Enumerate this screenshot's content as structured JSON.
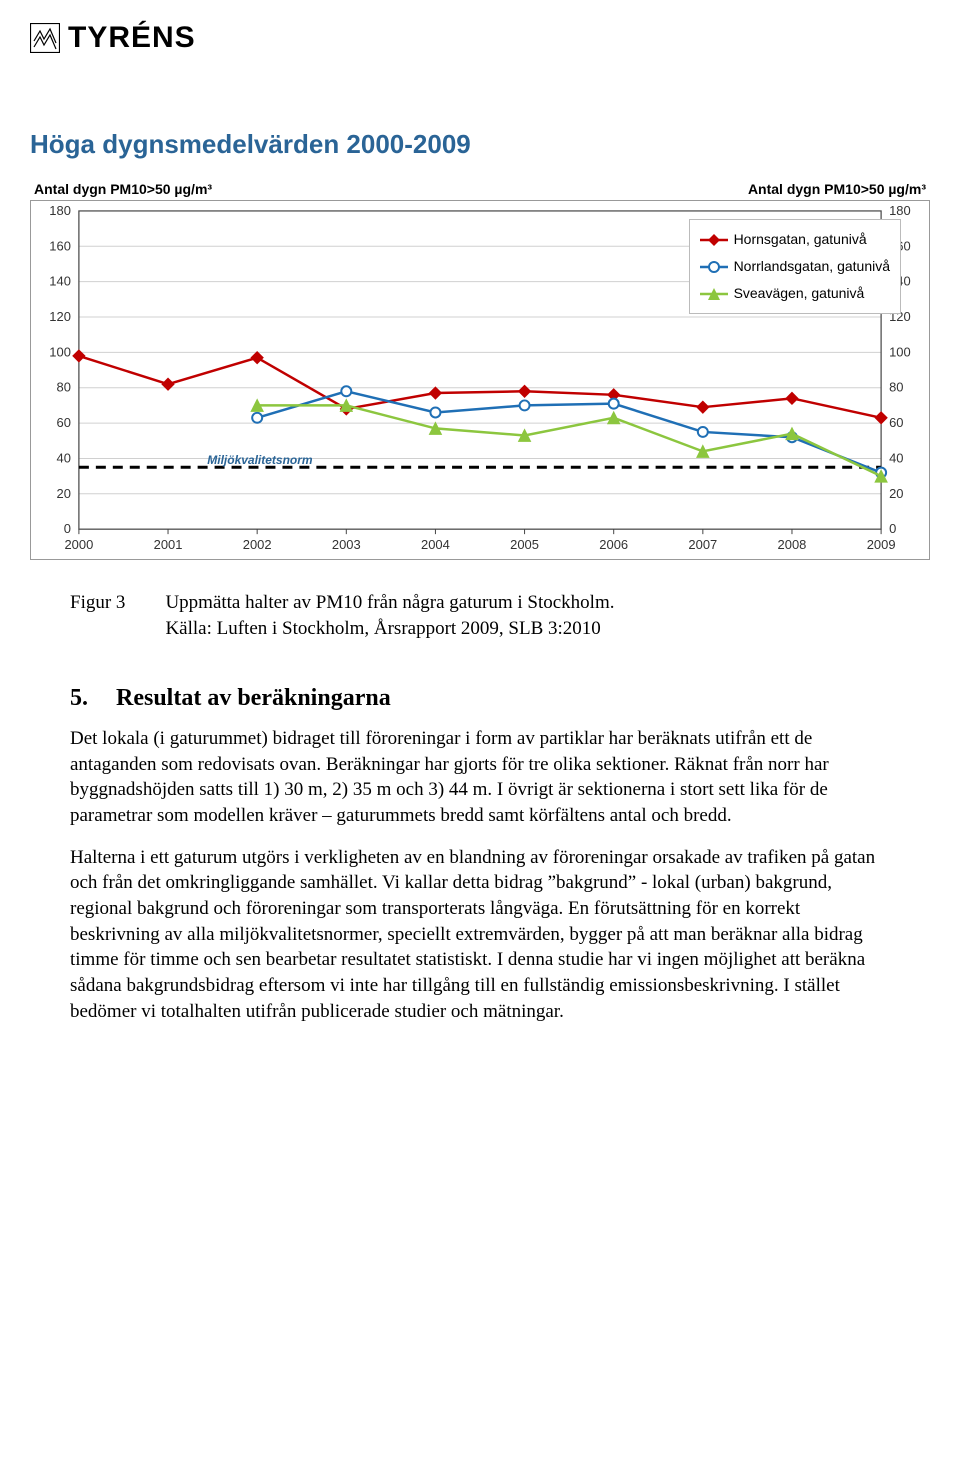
{
  "logo_text": "TYRÉNS",
  "chart": {
    "title_text": "Höga dygnsmedelvärden 2000-2009",
    "title_color": "#2a6496",
    "axis_label_left": "Antal dygn PM10>50 µg/m³",
    "axis_label_right": "Antal dygn PM10>50 µg/m³",
    "norm_label": "Miljökvalitetsnorm",
    "norm_label_color": "#2a6496",
    "years": [
      2000,
      2001,
      2002,
      2003,
      2004,
      2005,
      2006,
      2007,
      2008,
      2009
    ],
    "y_min": 0,
    "y_max": 180,
    "y_tick_step": 20,
    "norm_value": 35,
    "plot_bg": "#ffffff",
    "grid_color": "#d0d0d0",
    "axis_color": "#444444",
    "tick_font": 13,
    "series": [
      {
        "name": "Hornsgatan, gatunivå",
        "color": "#c00000",
        "marker": "diamond",
        "values": [
          98,
          82,
          97,
          68,
          77,
          78,
          76,
          69,
          74,
          63
        ]
      },
      {
        "name": "Norrlandsgatan, gatunivå",
        "color": "#1f6fb5",
        "marker": "circle",
        "values": [
          null,
          null,
          63,
          78,
          66,
          70,
          71,
          55,
          52,
          32
        ]
      },
      {
        "name": "Sveavägen, gatunivå",
        "color": "#8cc63f",
        "marker": "triangle",
        "values": [
          null,
          null,
          70,
          70,
          57,
          53,
          63,
          44,
          54,
          30
        ]
      }
    ]
  },
  "caption": {
    "label": "Figur 3",
    "text_line1": "Uppmätta halter av PM10 från några gaturum i Stockholm.",
    "text_line2": "Källa: Luften i Stockholm, Årsrapport 2009, SLB 3:2010"
  },
  "section": {
    "number": "5.",
    "title": "Resultat av beräkningarna"
  },
  "paragraphs": {
    "p1": "Det lokala (i gaturummet) bidraget till föroreningar i form av partiklar har beräknats utifrån ett de antaganden som redovisats ovan. Beräkningar har gjorts för tre olika sektioner. Räknat från norr har byggnadshöjden satts till 1) 30 m, 2) 35 m och 3) 44 m. I övrigt är sektionerna i stort sett lika för de parametrar som modellen kräver – gaturummets bredd samt körfältens antal och bredd.",
    "p2": "Halterna i ett gaturum utgörs i verkligheten av en blandning av föroreningar orsakade av trafiken på gatan och från det omkringliggande samhället. Vi kallar detta bidrag ”bakgrund” - lokal (urban) bakgrund, regional bakgrund och föroreningar som transporterats långväga. En förutsättning för en korrekt beskrivning av alla miljökvalitetsnormer, speciellt extremvärden, bygger på att man beräknar alla bidrag timme för timme och sen bearbetar resultatet statistiskt. I denna studie har vi ingen möjlighet att beräkna sådana bakgrundsbidrag eftersom vi inte har tillgång till en fullständig emissionsbeskrivning. I stället bedömer vi totalhalten utifrån publicerade studier och mätningar."
  }
}
